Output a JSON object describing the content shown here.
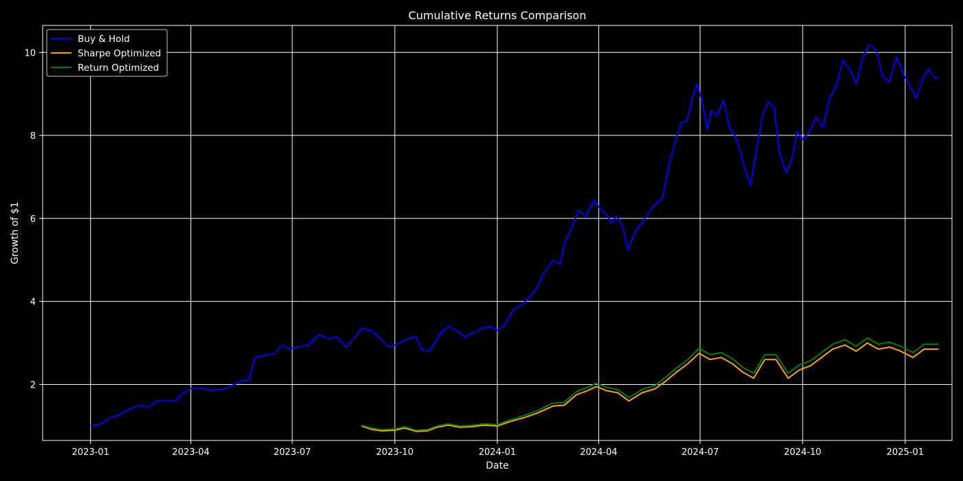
{
  "chart_data": {
    "type": "line",
    "title": "Cumulative Returns Comparison",
    "xlabel": "Date",
    "ylabel": "Growth of $1",
    "xlim": [
      "2022-11-19",
      "2025-02-12"
    ],
    "ylim": [
      0.65,
      10.65
    ],
    "x_ticks": [
      "2023-01",
      "2023-04",
      "2023-07",
      "2023-10",
      "2024-01",
      "2024-04",
      "2024-07",
      "2024-10",
      "2025-01"
    ],
    "y_ticks": [
      2,
      4,
      6,
      8,
      10
    ],
    "grid": true,
    "legend_position": "top-left",
    "series": [
      {
        "name": "Buy & Hold",
        "color": "#0000ff",
        "points": [
          [
            "2023-01-01",
            1.0
          ],
          [
            "2023-01-10",
            1.05
          ],
          [
            "2023-01-18",
            1.2
          ],
          [
            "2023-01-25",
            1.25
          ],
          [
            "2023-02-01",
            1.35
          ],
          [
            "2023-02-08",
            1.45
          ],
          [
            "2023-02-15",
            1.5
          ],
          [
            "2023-02-22",
            1.45
          ],
          [
            "2023-03-01",
            1.6
          ],
          [
            "2023-03-10",
            1.62
          ],
          [
            "2023-03-18",
            1.6
          ],
          [
            "2023-03-25",
            1.8
          ],
          [
            "2023-04-01",
            1.9
          ],
          [
            "2023-04-10",
            1.92
          ],
          [
            "2023-04-20",
            1.85
          ],
          [
            "2023-05-01",
            1.9
          ],
          [
            "2023-05-10",
            2.0
          ],
          [
            "2023-05-18",
            2.1
          ],
          [
            "2023-05-23",
            2.1
          ],
          [
            "2023-05-28",
            2.65
          ],
          [
            "2023-06-05",
            2.7
          ],
          [
            "2023-06-15",
            2.75
          ],
          [
            "2023-06-22",
            2.95
          ],
          [
            "2023-06-28",
            2.85
          ],
          [
            "2023-07-05",
            2.9
          ],
          [
            "2023-07-15",
            2.95
          ],
          [
            "2023-07-25",
            3.2
          ],
          [
            "2023-08-02",
            3.1
          ],
          [
            "2023-08-10",
            3.15
          ],
          [
            "2023-08-18",
            2.9
          ],
          [
            "2023-08-25",
            3.1
          ],
          [
            "2023-09-01",
            3.35
          ],
          [
            "2023-09-10",
            3.3
          ],
          [
            "2023-09-18",
            3.1
          ],
          [
            "2023-09-26",
            2.9
          ],
          [
            "2023-10-05",
            3.0
          ],
          [
            "2023-10-12",
            3.1
          ],
          [
            "2023-10-20",
            3.15
          ],
          [
            "2023-10-25",
            2.85
          ],
          [
            "2023-11-01",
            2.8
          ],
          [
            "2023-11-10",
            3.2
          ],
          [
            "2023-11-18",
            3.4
          ],
          [
            "2023-11-25",
            3.3
          ],
          [
            "2023-12-03",
            3.15
          ],
          [
            "2023-12-10",
            3.25
          ],
          [
            "2023-12-18",
            3.35
          ],
          [
            "2023-12-26",
            3.4
          ],
          [
            "2024-01-01",
            3.3
          ],
          [
            "2024-01-08",
            3.45
          ],
          [
            "2024-01-15",
            3.8
          ],
          [
            "2024-01-22",
            3.9
          ],
          [
            "2024-01-30",
            4.1
          ],
          [
            "2024-02-06",
            4.35
          ],
          [
            "2024-02-12",
            4.7
          ],
          [
            "2024-02-20",
            5.0
          ],
          [
            "2024-02-26",
            4.9
          ],
          [
            "2024-03-01",
            5.4
          ],
          [
            "2024-03-08",
            5.8
          ],
          [
            "2024-03-14",
            6.2
          ],
          [
            "2024-03-20",
            6.05
          ],
          [
            "2024-03-28",
            6.45
          ],
          [
            "2024-04-03",
            6.2
          ],
          [
            "2024-04-08",
            6.1
          ],
          [
            "2024-04-12",
            5.9
          ],
          [
            "2024-04-17",
            6.05
          ],
          [
            "2024-04-22",
            5.85
          ],
          [
            "2024-04-27",
            5.25
          ],
          [
            "2024-05-04",
            5.7
          ],
          [
            "2024-05-12",
            6.0
          ],
          [
            "2024-05-20",
            6.3
          ],
          [
            "2024-05-28",
            6.5
          ],
          [
            "2024-06-03",
            7.3
          ],
          [
            "2024-06-08",
            7.8
          ],
          [
            "2024-06-14",
            8.3
          ],
          [
            "2024-06-19",
            8.35
          ],
          [
            "2024-06-24",
            8.9
          ],
          [
            "2024-06-28",
            9.25
          ],
          [
            "2024-07-03",
            8.8
          ],
          [
            "2024-07-07",
            8.15
          ],
          [
            "2024-07-11",
            8.6
          ],
          [
            "2024-07-16",
            8.5
          ],
          [
            "2024-07-22",
            8.85
          ],
          [
            "2024-07-27",
            8.2
          ],
          [
            "2024-08-01",
            8.0
          ],
          [
            "2024-08-05",
            7.7
          ],
          [
            "2024-08-10",
            7.2
          ],
          [
            "2024-08-15",
            6.8
          ],
          [
            "2024-08-20",
            7.6
          ],
          [
            "2024-08-26",
            8.5
          ],
          [
            "2024-08-31",
            8.8
          ],
          [
            "2024-09-05",
            8.7
          ],
          [
            "2024-09-10",
            7.6
          ],
          [
            "2024-09-16",
            7.1
          ],
          [
            "2024-09-21",
            7.4
          ],
          [
            "2024-09-26",
            8.1
          ],
          [
            "2024-10-01",
            7.9
          ],
          [
            "2024-10-07",
            8.1
          ],
          [
            "2024-10-13",
            8.45
          ],
          [
            "2024-10-19",
            8.2
          ],
          [
            "2024-10-25",
            8.9
          ],
          [
            "2024-10-31",
            9.2
          ],
          [
            "2024-11-06",
            9.8
          ],
          [
            "2024-11-12",
            9.6
          ],
          [
            "2024-11-18",
            9.25
          ],
          [
            "2024-11-24",
            9.9
          ],
          [
            "2024-11-30",
            10.2
          ],
          [
            "2024-12-06",
            10.05
          ],
          [
            "2024-12-12",
            9.4
          ],
          [
            "2024-12-18",
            9.3
          ],
          [
            "2024-12-24",
            9.9
          ],
          [
            "2024-12-30",
            9.5
          ],
          [
            "2025-01-05",
            9.2
          ],
          [
            "2025-01-11",
            8.9
          ],
          [
            "2025-01-17",
            9.4
          ],
          [
            "2025-01-22",
            9.6
          ],
          [
            "2025-01-27",
            9.4
          ],
          [
            "2025-01-31",
            9.4
          ]
        ]
      },
      {
        "name": "Sharpe Optimized",
        "color": "#ffa500",
        "points": [
          [
            "2023-09-01",
            1.0
          ],
          [
            "2023-09-10",
            0.92
          ],
          [
            "2023-09-20",
            0.88
          ],
          [
            "2023-10-01",
            0.9
          ],
          [
            "2023-10-10",
            0.95
          ],
          [
            "2023-10-20",
            0.87
          ],
          [
            "2023-10-30",
            0.88
          ],
          [
            "2023-11-08",
            0.97
          ],
          [
            "2023-11-18",
            1.02
          ],
          [
            "2023-11-28",
            0.97
          ],
          [
            "2023-12-08",
            0.98
          ],
          [
            "2023-12-20",
            1.02
          ],
          [
            "2024-01-01",
            1.0
          ],
          [
            "2024-01-12",
            1.1
          ],
          [
            "2024-01-25",
            1.2
          ],
          [
            "2024-02-05",
            1.3
          ],
          [
            "2024-02-20",
            1.48
          ],
          [
            "2024-03-01",
            1.5
          ],
          [
            "2024-03-12",
            1.75
          ],
          [
            "2024-03-22",
            1.85
          ],
          [
            "2024-03-30",
            1.95
          ],
          [
            "2024-04-08",
            1.85
          ],
          [
            "2024-04-18",
            1.8
          ],
          [
            "2024-04-28",
            1.6
          ],
          [
            "2024-05-10",
            1.8
          ],
          [
            "2024-05-22",
            1.9
          ],
          [
            "2024-06-01",
            2.1
          ],
          [
            "2024-06-10",
            2.3
          ],
          [
            "2024-06-20",
            2.5
          ],
          [
            "2024-06-30",
            2.75
          ],
          [
            "2024-07-10",
            2.6
          ],
          [
            "2024-07-20",
            2.65
          ],
          [
            "2024-07-30",
            2.5
          ],
          [
            "2024-08-08",
            2.3
          ],
          [
            "2024-08-18",
            2.15
          ],
          [
            "2024-08-28",
            2.6
          ],
          [
            "2024-09-07",
            2.6
          ],
          [
            "2024-09-18",
            2.15
          ],
          [
            "2024-09-28",
            2.35
          ],
          [
            "2024-10-08",
            2.45
          ],
          [
            "2024-10-18",
            2.65
          ],
          [
            "2024-10-28",
            2.85
          ],
          [
            "2024-11-08",
            2.95
          ],
          [
            "2024-11-18",
            2.8
          ],
          [
            "2024-11-28",
            3.0
          ],
          [
            "2024-12-08",
            2.85
          ],
          [
            "2024-12-18",
            2.9
          ],
          [
            "2024-12-28",
            2.8
          ],
          [
            "2025-01-08",
            2.65
          ],
          [
            "2025-01-18",
            2.85
          ],
          [
            "2025-01-31",
            2.85
          ]
        ]
      },
      {
        "name": "Return Optimized",
        "color": "#008000",
        "points": [
          [
            "2023-09-01",
            1.02
          ],
          [
            "2023-09-10",
            0.95
          ],
          [
            "2023-09-20",
            0.91
          ],
          [
            "2023-10-01",
            0.93
          ],
          [
            "2023-10-10",
            0.98
          ],
          [
            "2023-10-20",
            0.9
          ],
          [
            "2023-10-30",
            0.91
          ],
          [
            "2023-11-08",
            1.0
          ],
          [
            "2023-11-18",
            1.05
          ],
          [
            "2023-11-28",
            1.0
          ],
          [
            "2023-12-08",
            1.01
          ],
          [
            "2023-12-20",
            1.05
          ],
          [
            "2024-01-01",
            1.03
          ],
          [
            "2024-01-12",
            1.14
          ],
          [
            "2024-01-25",
            1.25
          ],
          [
            "2024-02-05",
            1.36
          ],
          [
            "2024-02-20",
            1.55
          ],
          [
            "2024-03-01",
            1.57
          ],
          [
            "2024-03-12",
            1.83
          ],
          [
            "2024-03-22",
            1.93
          ],
          [
            "2024-03-30",
            2.03
          ],
          [
            "2024-04-08",
            1.93
          ],
          [
            "2024-04-18",
            1.88
          ],
          [
            "2024-04-28",
            1.68
          ],
          [
            "2024-05-10",
            1.88
          ],
          [
            "2024-05-22",
            1.98
          ],
          [
            "2024-06-01",
            2.2
          ],
          [
            "2024-06-10",
            2.4
          ],
          [
            "2024-06-20",
            2.6
          ],
          [
            "2024-06-30",
            2.87
          ],
          [
            "2024-07-10",
            2.72
          ],
          [
            "2024-07-20",
            2.77
          ],
          [
            "2024-07-30",
            2.62
          ],
          [
            "2024-08-08",
            2.42
          ],
          [
            "2024-08-18",
            2.27
          ],
          [
            "2024-08-28",
            2.72
          ],
          [
            "2024-09-07",
            2.72
          ],
          [
            "2024-09-18",
            2.27
          ],
          [
            "2024-09-28",
            2.47
          ],
          [
            "2024-10-08",
            2.57
          ],
          [
            "2024-10-18",
            2.77
          ],
          [
            "2024-10-28",
            2.97
          ],
          [
            "2024-11-08",
            3.08
          ],
          [
            "2024-11-18",
            2.92
          ],
          [
            "2024-11-28",
            3.12
          ],
          [
            "2024-12-08",
            2.97
          ],
          [
            "2024-12-18",
            3.02
          ],
          [
            "2024-12-28",
            2.92
          ],
          [
            "2025-01-08",
            2.77
          ],
          [
            "2025-01-18",
            2.97
          ],
          [
            "2025-01-31",
            2.97
          ]
        ]
      }
    ]
  }
}
